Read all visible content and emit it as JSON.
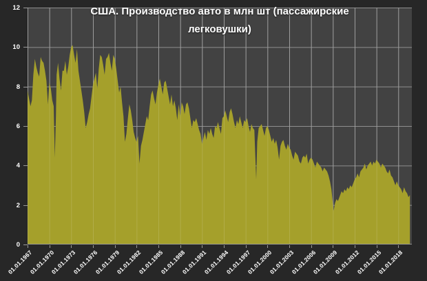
{
  "title": "США. Производство авто в млн шт (пассажирские легковушки)",
  "colors": {
    "background": "#272727",
    "plot_background": "#424242",
    "area": "#a5a02b",
    "gridline": "#8f8f8f",
    "gridline_over_area": "rgba(255,255,255,0.14)",
    "axis_line": "#9a9a9a",
    "text": "#ffffff"
  },
  "chart_data": {
    "type": "area",
    "title": "США. Производство авто в млн шт (пассажирские легковушки)",
    "xlabel": "",
    "ylabel": "",
    "ylim": [
      0,
      12
    ],
    "xlim": [
      1967,
      2019.85
    ],
    "grid": true,
    "legend": false,
    "y_ticks": [
      0,
      2,
      4,
      6,
      8,
      10,
      12
    ],
    "x_ticks": [
      {
        "year": 1967,
        "label": "01.01.1967"
      },
      {
        "year": 1970,
        "label": "01.01.1970"
      },
      {
        "year": 1973,
        "label": "01.01.1973"
      },
      {
        "year": 1976,
        "label": "01.01.1976"
      },
      {
        "year": 1979,
        "label": "01.01.1979"
      },
      {
        "year": 1982,
        "label": "01.01.1982"
      },
      {
        "year": 1985,
        "label": "01.01.1985"
      },
      {
        "year": 1988,
        "label": "01.01.1988"
      },
      {
        "year": 1991,
        "label": "01.01.1991"
      },
      {
        "year": 1994,
        "label": "01.01.1994"
      },
      {
        "year": 1997,
        "label": "01.01.1997"
      },
      {
        "year": 2000,
        "label": "01.01.2000"
      },
      {
        "year": 2003,
        "label": "01.01.2003"
      },
      {
        "year": 2006,
        "label": "01.01.2006"
      },
      {
        "year": 2009,
        "label": "01.01.2009"
      },
      {
        "year": 2012,
        "label": "01.01.2012"
      },
      {
        "year": 2015,
        "label": "01.01.2015"
      },
      {
        "year": 2018,
        "label": "01.01.2018"
      }
    ],
    "series": [
      {
        "points": [
          [
            1967.0,
            7.8
          ],
          [
            1967.2,
            7.4
          ],
          [
            1967.4,
            7.0
          ],
          [
            1967.6,
            7.3
          ],
          [
            1967.8,
            8.6
          ],
          [
            1968.0,
            9.4
          ],
          [
            1968.2,
            9.0
          ],
          [
            1968.4,
            8.7
          ],
          [
            1968.6,
            8.5
          ],
          [
            1968.8,
            9.5
          ],
          [
            1969.0,
            9.3
          ],
          [
            1969.2,
            9.2
          ],
          [
            1969.4,
            8.8
          ],
          [
            1969.6,
            8.3
          ],
          [
            1969.8,
            7.1
          ],
          [
            1970.0,
            8.2
          ],
          [
            1970.2,
            7.9
          ],
          [
            1970.4,
            7.3
          ],
          [
            1970.6,
            7.0
          ],
          [
            1970.75,
            4.4
          ],
          [
            1970.9,
            6.5
          ],
          [
            1971.0,
            8.6
          ],
          [
            1971.2,
            9.2
          ],
          [
            1971.4,
            8.4
          ],
          [
            1971.6,
            7.8
          ],
          [
            1971.8,
            8.8
          ],
          [
            1972.0,
            8.8
          ],
          [
            1972.2,
            9.3
          ],
          [
            1972.4,
            8.6
          ],
          [
            1972.6,
            9.0
          ],
          [
            1972.8,
            9.6
          ],
          [
            1973.0,
            10.0
          ],
          [
            1973.2,
            10.1
          ],
          [
            1973.4,
            9.6
          ],
          [
            1973.6,
            9.2
          ],
          [
            1973.8,
            9.9
          ],
          [
            1974.0,
            8.8
          ],
          [
            1974.2,
            8.3
          ],
          [
            1974.4,
            7.8
          ],
          [
            1974.6,
            7.3
          ],
          [
            1974.8,
            6.7
          ],
          [
            1975.0,
            5.9
          ],
          [
            1975.2,
            6.2
          ],
          [
            1975.4,
            6.6
          ],
          [
            1975.6,
            6.9
          ],
          [
            1975.8,
            7.5
          ],
          [
            1976.0,
            8.1
          ],
          [
            1976.2,
            8.4
          ],
          [
            1976.4,
            8.7
          ],
          [
            1976.6,
            7.9
          ],
          [
            1976.8,
            8.9
          ],
          [
            1977.0,
            9.6
          ],
          [
            1977.2,
            9.5
          ],
          [
            1977.4,
            9.1
          ],
          [
            1977.6,
            8.6
          ],
          [
            1977.8,
            9.4
          ],
          [
            1978.0,
            9.5
          ],
          [
            1978.2,
            9.7
          ],
          [
            1978.4,
            9.2
          ],
          [
            1978.6,
            8.8
          ],
          [
            1978.8,
            9.6
          ],
          [
            1979.0,
            9.4
          ],
          [
            1979.2,
            8.9
          ],
          [
            1979.4,
            8.3
          ],
          [
            1979.6,
            7.7
          ],
          [
            1979.8,
            8.0
          ],
          [
            1980.0,
            7.2
          ],
          [
            1980.2,
            6.5
          ],
          [
            1980.4,
            5.2
          ],
          [
            1980.6,
            5.6
          ],
          [
            1980.8,
            6.4
          ],
          [
            1981.0,
            7.1
          ],
          [
            1981.2,
            6.8
          ],
          [
            1981.4,
            6.3
          ],
          [
            1981.6,
            5.7
          ],
          [
            1981.8,
            5.4
          ],
          [
            1982.0,
            5.2
          ],
          [
            1982.2,
            5.5
          ],
          [
            1982.4,
            4.1
          ],
          [
            1982.6,
            5.0
          ],
          [
            1982.8,
            5.3
          ],
          [
            1983.0,
            5.7
          ],
          [
            1983.2,
            6.1
          ],
          [
            1983.4,
            6.5
          ],
          [
            1983.6,
            6.3
          ],
          [
            1983.8,
            7.0
          ],
          [
            1984.0,
            7.6
          ],
          [
            1984.2,
            7.8
          ],
          [
            1984.4,
            7.4
          ],
          [
            1984.6,
            7.1
          ],
          [
            1984.8,
            7.7
          ],
          [
            1985.0,
            8.1
          ],
          [
            1985.2,
            8.4
          ],
          [
            1985.4,
            8.0
          ],
          [
            1985.6,
            7.6
          ],
          [
            1985.8,
            8.2
          ],
          [
            1986.0,
            8.3
          ],
          [
            1986.2,
            7.9
          ],
          [
            1986.4,
            7.5
          ],
          [
            1986.6,
            7.1
          ],
          [
            1986.8,
            7.6
          ],
          [
            1987.0,
            7.0
          ],
          [
            1987.2,
            7.3
          ],
          [
            1987.4,
            6.9
          ],
          [
            1987.6,
            6.3
          ],
          [
            1987.8,
            7.1
          ],
          [
            1988.0,
            6.5
          ],
          [
            1988.2,
            7.2
          ],
          [
            1988.4,
            7.0
          ],
          [
            1988.6,
            6.6
          ],
          [
            1988.8,
            7.1
          ],
          [
            1989.0,
            7.2
          ],
          [
            1989.2,
            6.9
          ],
          [
            1989.4,
            6.4
          ],
          [
            1989.6,
            5.9
          ],
          [
            1989.8,
            6.3
          ],
          [
            1990.0,
            6.2
          ],
          [
            1990.2,
            6.4
          ],
          [
            1990.4,
            6.1
          ],
          [
            1990.6,
            5.8
          ],
          [
            1990.8,
            5.6
          ],
          [
            1991.0,
            5.1
          ],
          [
            1991.2,
            5.4
          ],
          [
            1991.4,
            5.7
          ],
          [
            1991.6,
            5.3
          ],
          [
            1991.8,
            5.8
          ],
          [
            1992.0,
            5.6
          ],
          [
            1992.2,
            5.9
          ],
          [
            1992.4,
            5.6
          ],
          [
            1992.6,
            5.4
          ],
          [
            1992.8,
            6.0
          ],
          [
            1993.0,
            5.9
          ],
          [
            1993.2,
            6.2
          ],
          [
            1993.4,
            5.9
          ],
          [
            1993.6,
            5.6
          ],
          [
            1993.8,
            6.4
          ],
          [
            1994.0,
            6.5
          ],
          [
            1994.2,
            6.8
          ],
          [
            1994.4,
            6.5
          ],
          [
            1994.6,
            6.2
          ],
          [
            1994.8,
            6.7
          ],
          [
            1995.0,
            6.9
          ],
          [
            1995.2,
            6.6
          ],
          [
            1995.4,
            6.2
          ],
          [
            1995.6,
            5.9
          ],
          [
            1995.8,
            6.3
          ],
          [
            1996.0,
            6.1
          ],
          [
            1996.2,
            6.5
          ],
          [
            1996.4,
            6.2
          ],
          [
            1996.6,
            5.9
          ],
          [
            1996.8,
            6.3
          ],
          [
            1997.0,
            6.2
          ],
          [
            1997.2,
            6.4
          ],
          [
            1997.4,
            6.0
          ],
          [
            1997.6,
            5.7
          ],
          [
            1997.8,
            6.1
          ],
          [
            1998.0,
            5.9
          ],
          [
            1998.2,
            5.8
          ],
          [
            1998.45,
            3.3
          ],
          [
            1998.6,
            5.2
          ],
          [
            1998.8,
            5.9
          ],
          [
            1999.0,
            6.0
          ],
          [
            1999.2,
            6.1
          ],
          [
            1999.4,
            5.8
          ],
          [
            1999.6,
            5.5
          ],
          [
            1999.8,
            5.9
          ],
          [
            2000.0,
            6.0
          ],
          [
            2000.2,
            5.8
          ],
          [
            2000.4,
            5.5
          ],
          [
            2000.6,
            5.2
          ],
          [
            2000.8,
            5.4
          ],
          [
            2001.0,
            5.1
          ],
          [
            2001.2,
            5.3
          ],
          [
            2001.4,
            4.9
          ],
          [
            2001.6,
            4.3
          ],
          [
            2001.8,
            5.0
          ],
          [
            2002.0,
            5.2
          ],
          [
            2002.2,
            5.3
          ],
          [
            2002.4,
            5.0
          ],
          [
            2002.6,
            4.8
          ],
          [
            2002.8,
            5.1
          ],
          [
            2003.0,
            4.9
          ],
          [
            2003.2,
            4.8
          ],
          [
            2003.4,
            4.5
          ],
          [
            2003.6,
            4.3
          ],
          [
            2003.8,
            4.7
          ],
          [
            2004.0,
            4.6
          ],
          [
            2004.2,
            4.5
          ],
          [
            2004.4,
            4.2
          ],
          [
            2004.6,
            4.1
          ],
          [
            2004.8,
            4.4
          ],
          [
            2005.0,
            4.5
          ],
          [
            2005.2,
            4.4
          ],
          [
            2005.4,
            4.6
          ],
          [
            2005.6,
            4.1
          ],
          [
            2005.8,
            4.3
          ],
          [
            2006.0,
            4.4
          ],
          [
            2006.2,
            4.3
          ],
          [
            2006.4,
            4.1
          ],
          [
            2006.6,
            3.9
          ],
          [
            2006.8,
            4.2
          ],
          [
            2007.0,
            4.1
          ],
          [
            2007.2,
            4.0
          ],
          [
            2007.4,
            3.9
          ],
          [
            2007.6,
            3.7
          ],
          [
            2007.8,
            3.9
          ],
          [
            2008.0,
            3.8
          ],
          [
            2008.2,
            3.7
          ],
          [
            2008.4,
            3.5
          ],
          [
            2008.6,
            3.2
          ],
          [
            2008.8,
            2.8
          ],
          [
            2009.1,
            1.7
          ],
          [
            2009.3,
            2.1
          ],
          [
            2009.5,
            2.3
          ],
          [
            2009.7,
            2.2
          ],
          [
            2009.9,
            2.4
          ],
          [
            2010.0,
            2.5
          ],
          [
            2010.2,
            2.7
          ],
          [
            2010.4,
            2.6
          ],
          [
            2010.6,
            2.8
          ],
          [
            2010.8,
            2.7
          ],
          [
            2011.0,
            2.9
          ],
          [
            2011.2,
            2.8
          ],
          [
            2011.4,
            3.0
          ],
          [
            2011.6,
            2.9
          ],
          [
            2011.8,
            3.1
          ],
          [
            2012.0,
            3.3
          ],
          [
            2012.2,
            3.4
          ],
          [
            2012.4,
            3.6
          ],
          [
            2012.6,
            3.4
          ],
          [
            2012.8,
            3.7
          ],
          [
            2013.0,
            3.8
          ],
          [
            2013.2,
            3.9
          ],
          [
            2013.4,
            4.1
          ],
          [
            2013.6,
            3.8
          ],
          [
            2013.8,
            4.0
          ],
          [
            2014.0,
            4.1
          ],
          [
            2014.2,
            4.2
          ],
          [
            2014.4,
            4.0
          ],
          [
            2014.6,
            4.2
          ],
          [
            2014.8,
            4.1
          ],
          [
            2015.0,
            4.3
          ],
          [
            2015.2,
            4.2
          ],
          [
            2015.4,
            4.1
          ],
          [
            2015.6,
            3.9
          ],
          [
            2015.8,
            4.1
          ],
          [
            2016.0,
            4.0
          ],
          [
            2016.2,
            3.9
          ],
          [
            2016.4,
            3.7
          ],
          [
            2016.6,
            3.6
          ],
          [
            2016.8,
            3.8
          ],
          [
            2017.0,
            3.5
          ],
          [
            2017.2,
            3.4
          ],
          [
            2017.4,
            3.2
          ],
          [
            2017.6,
            3.0
          ],
          [
            2017.8,
            3.2
          ],
          [
            2018.0,
            3.0
          ],
          [
            2018.2,
            2.9
          ],
          [
            2018.4,
            2.8
          ],
          [
            2018.6,
            2.6
          ],
          [
            2018.8,
            2.9
          ],
          [
            2019.0,
            2.7
          ],
          [
            2019.2,
            2.6
          ],
          [
            2019.4,
            2.4
          ],
          [
            2019.6,
            2.5
          ]
        ]
      }
    ]
  }
}
